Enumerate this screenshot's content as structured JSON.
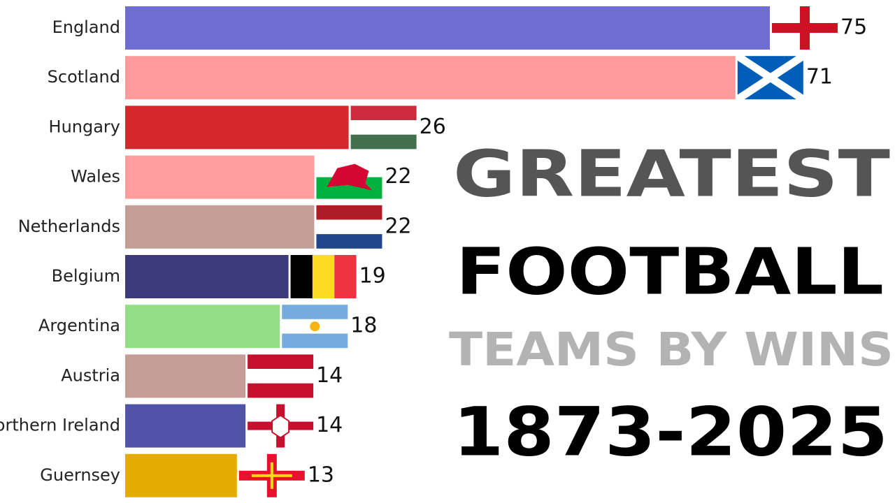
{
  "chart_data": {
    "type": "bar",
    "orientation": "horizontal",
    "title": [
      "GREATEST",
      "FOOTBALL"
    ],
    "subtitle": "TEAMS BY WINS",
    "annotation": "1873-2025",
    "categories": [
      "England",
      "Scotland",
      "Hungary",
      "Wales",
      "Netherlands",
      "Belgium",
      "Argentina",
      "Austria",
      "Northern Ireland",
      "Guernsey"
    ],
    "values": [
      75,
      71,
      26,
      22,
      22,
      19,
      18,
      14,
      14,
      13
    ],
    "colors": [
      "#6e6fd1",
      "#ff9b9b",
      "#d5272c",
      "#ff9d9d",
      "#c49d96",
      "#3b3b7b",
      "#93dd85",
      "#c49d96",
      "#5053a8",
      "#e5ac00"
    ]
  }
}
